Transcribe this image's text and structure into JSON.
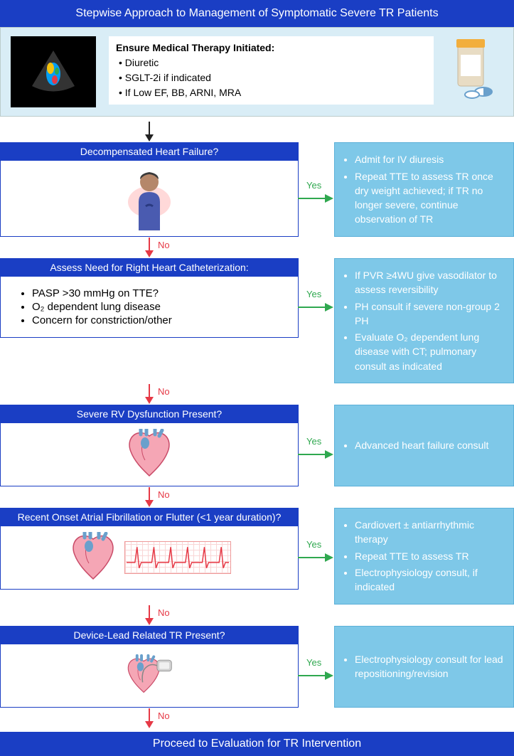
{
  "type": "flowchart",
  "colors": {
    "header_bg": "#1a3ec4",
    "header_text": "#ffffff",
    "intro_bg": "#d9edf6",
    "result_bg": "#7ec8e8",
    "result_border": "#5bb0d8",
    "result_text": "#ffffff",
    "no_arrow": "#e63946",
    "yes_arrow": "#2fa84f",
    "body_bg": "#ffffff"
  },
  "title": "Stepwise Approach to Management of Symptomatic Severe TR Patients",
  "intro": {
    "heading": "Ensure Medical Therapy Initiated:",
    "items": [
      "Diuretic",
      "SGLT-2i if indicated",
      "If Low EF, BB, ARNI, MRA"
    ]
  },
  "labels": {
    "yes": "Yes",
    "no": "No"
  },
  "steps": [
    {
      "head": "Decompensated Heart Failure?",
      "icon": "person",
      "body_items": [],
      "result_items": [
        "Admit for IV diuresis",
        "Repeat TTE to assess TR once dry weight achieved; if TR no longer severe, continue observation of TR"
      ]
    },
    {
      "head": "Assess Need for Right Heart Catheterization:",
      "icon": "none",
      "body_items": [
        "PASP >30 mmHg on TTE?",
        "O₂ dependent lung disease",
        "Concern for constriction/other"
      ],
      "result_items": [
        "If PVR ≥4WU give vasodilator to assess reversibility",
        "PH consult if severe non-group 2 PH",
        "Evaluate O₂ dependent lung disease with CT; pulmonary consult as indicated"
      ]
    },
    {
      "head": "Severe RV Dysfunction Present?",
      "icon": "heart",
      "body_items": [],
      "result_items": [
        "Advanced heart failure consult"
      ]
    },
    {
      "head": "Recent Onset Atrial Fibrillation or Flutter (<1 year duration)?",
      "icon": "heart-ecg",
      "body_items": [],
      "result_items": [
        "Cardiovert ± antiarrhythmic therapy",
        "Repeat TTE to assess TR",
        "Electrophysiology consult, if indicated"
      ]
    },
    {
      "head": "Device-Lead Related TR Present?",
      "icon": "heart-device",
      "body_items": [],
      "result_items": [
        "Electrophysiology consult for lead repositioning/revision"
      ]
    }
  ],
  "footer": "Proceed to Evaluation for TR Intervention"
}
